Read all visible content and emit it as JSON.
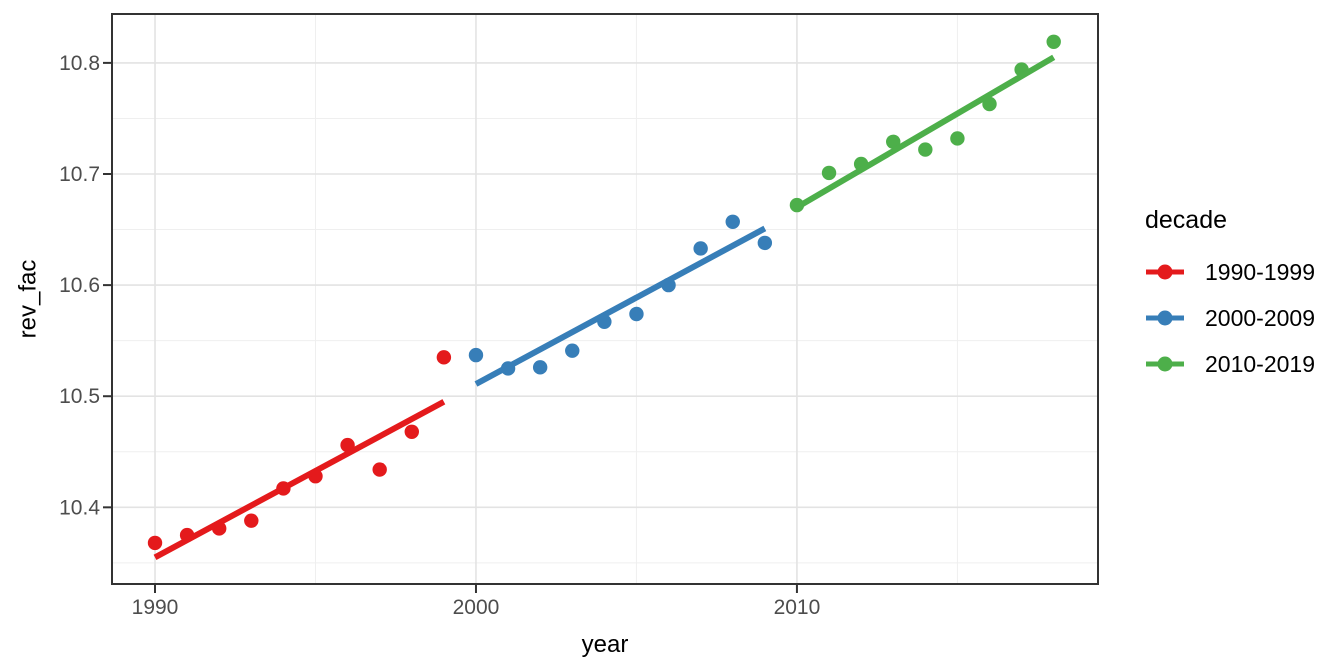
{
  "chart_data": {
    "type": "scatter",
    "title": "",
    "xlabel": "year",
    "ylabel": "rev_fac",
    "grid": true,
    "legend": {
      "title": "decade",
      "position": "right"
    },
    "x_axis": {
      "ticks": [
        1990,
        2000,
        2010
      ],
      "minor_ticks": [
        1995,
        2005,
        2015
      ],
      "range": [
        1988.66,
        2019.38
      ]
    },
    "y_axis": {
      "ticks": [
        10.4,
        10.5,
        10.6,
        10.7,
        10.8
      ],
      "minor_ticks": [
        10.35,
        10.45,
        10.55,
        10.65,
        10.75
      ],
      "range": [
        10.331,
        10.844
      ],
      "decimals": 1
    },
    "series": [
      {
        "name": "1990-1999",
        "color": "#E41A1C",
        "x": [
          1990,
          1991,
          1992,
          1993,
          1994,
          1995,
          1996,
          1997,
          1998,
          1999
        ],
        "y": [
          10.368,
          10.375,
          10.381,
          10.388,
          10.417,
          10.428,
          10.456,
          10.434,
          10.468,
          10.535
        ],
        "trend": {
          "x": [
            1990,
            1999
          ],
          "y": [
            10.355,
            10.495
          ]
        }
      },
      {
        "name": "2000-2009",
        "color": "#377EB8",
        "x": [
          2000,
          2001,
          2002,
          2003,
          2004,
          2005,
          2006,
          2007,
          2008,
          2009
        ],
        "y": [
          10.537,
          10.525,
          10.526,
          10.541,
          10.567,
          10.574,
          10.6,
          10.633,
          10.657,
          10.638
        ],
        "trend": {
          "x": [
            2000,
            2009
          ],
          "y": [
            10.511,
            10.651
          ]
        }
      },
      {
        "name": "2010-2019",
        "color": "#4DAF4A",
        "x": [
          2010,
          2011,
          2012,
          2013,
          2014,
          2015,
          2016,
          2017,
          2018
        ],
        "y": [
          10.672,
          10.701,
          10.709,
          10.729,
          10.722,
          10.732,
          10.763,
          10.794,
          10.819
        ],
        "trend": {
          "x": [
            2010,
            2018
          ],
          "y": [
            10.67,
            10.805
          ]
        }
      }
    ],
    "theme": {
      "panel_border": "#333333",
      "grid_major": "#e3e3e3",
      "grid_minor": "#efefef",
      "tick_color": "#333333",
      "tick_label_color": "#4d4d4d"
    }
  }
}
